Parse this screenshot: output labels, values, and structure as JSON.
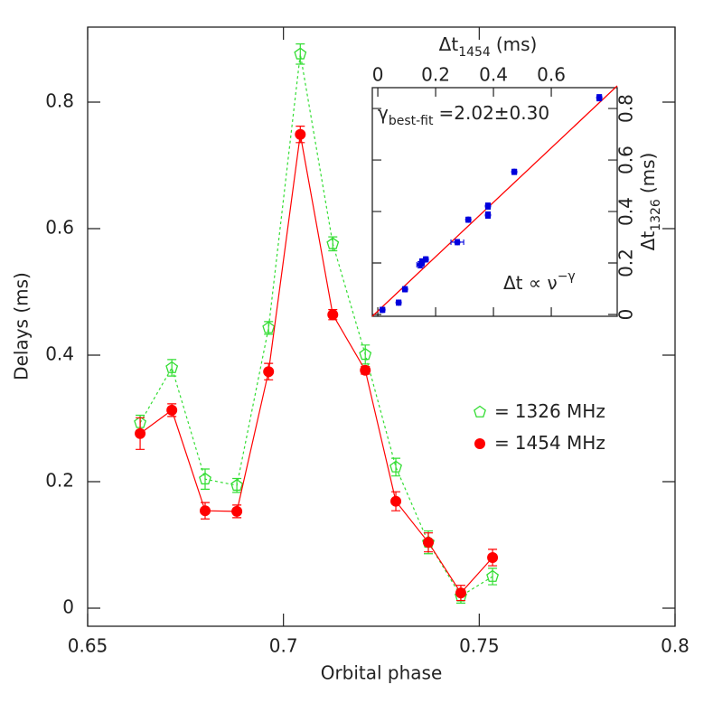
{
  "chart_data": [
    {
      "type": "line",
      "xlabel": "Orbital phase",
      "ylabel": "Delays (ms)",
      "xlim": [
        0.65,
        0.8
      ],
      "ylim": [
        -0.0286,
        0.9186
      ],
      "xticks": [
        0.65,
        0.7,
        0.75,
        0.8
      ],
      "yticks": [
        0,
        0.2,
        0.4,
        0.6,
        0.8
      ],
      "legend_separator": "=",
      "series": [
        {
          "name": "1326 MHz",
          "color": "#33dd33",
          "marker": "pentagon-open",
          "linestyle": "dotted",
          "x": [
            0.6634,
            0.6715,
            0.68,
            0.6881,
            0.6962,
            0.7043,
            0.7126,
            0.7209,
            0.7287,
            0.737,
            0.7453,
            0.7534
          ],
          "values": [
            0.293,
            0.38,
            0.204,
            0.194,
            0.443,
            0.876,
            0.576,
            0.401,
            0.223,
            0.104,
            0.019,
            0.05
          ],
          "errors": [
            0.012,
            0.013,
            0.016,
            0.011,
            0.01,
            0.016,
            0.011,
            0.015,
            0.014,
            0.018,
            0.011,
            0.013
          ]
        },
        {
          "name": "1454 MHz",
          "color": "#ff0000",
          "marker": "circle-filled",
          "linestyle": "solid",
          "x": [
            0.6634,
            0.6715,
            0.68,
            0.6881,
            0.6962,
            0.7043,
            0.7126,
            0.7209,
            0.7287,
            0.737,
            0.7453,
            0.7534
          ],
          "values": [
            0.276,
            0.313,
            0.154,
            0.153,
            0.374,
            0.749,
            0.464,
            0.376,
            0.169,
            0.104,
            0.024,
            0.08
          ],
          "errors": [
            0.025,
            0.01,
            0.013,
            0.01,
            0.013,
            0.013,
            0.008,
            0.006,
            0.015,
            0.015,
            0.012,
            0.013
          ]
        }
      ]
    },
    {
      "type": "scatter",
      "xlabel": {
        "symbol": "Δt",
        "sub": "1454",
        "unit": "(ms)"
      },
      "ylabel": {
        "symbol": "Δt",
        "sub": "1326",
        "unit": "(ms)"
      },
      "xlim": [
        -0.019,
        0.828
      ],
      "ylim": [
        -0.007,
        0.881
      ],
      "xticks": [
        0,
        0.2,
        0.4,
        0.6
      ],
      "yticks": [
        0,
        0.2,
        0.4,
        0.6,
        0.8
      ],
      "color": "#0000dd",
      "x": [
        0.016,
        0.072,
        0.094,
        0.147,
        0.153,
        0.166,
        0.275,
        0.313,
        0.381,
        0.381,
        0.472,
        0.766
      ],
      "values": [
        0.018,
        0.046,
        0.098,
        0.193,
        0.204,
        0.214,
        0.281,
        0.368,
        0.421,
        0.386,
        0.554,
        0.842
      ],
      "x_err": [
        0.008,
        0.008,
        0.008,
        0.012,
        0.008,
        0.008,
        0.022,
        0.008,
        0.008,
        0.008,
        0.008,
        0.008
      ],
      "y_err": [
        0.01,
        0.01,
        0.01,
        0.012,
        0.012,
        0.01,
        0.01,
        0.01,
        0.012,
        0.012,
        0.01,
        0.012
      ],
      "fit_line": {
        "color": "#ff0000",
        "x": [
          -0.019,
          0.828
        ],
        "y": [
          -0.007,
          0.888
        ]
      },
      "annotations": [
        {
          "symbol": "γ",
          "sub": "best-fit",
          "text": "=2.02±0.30"
        },
        {
          "text": "Δt ∝ ν",
          "sup": "−γ"
        }
      ]
    }
  ]
}
